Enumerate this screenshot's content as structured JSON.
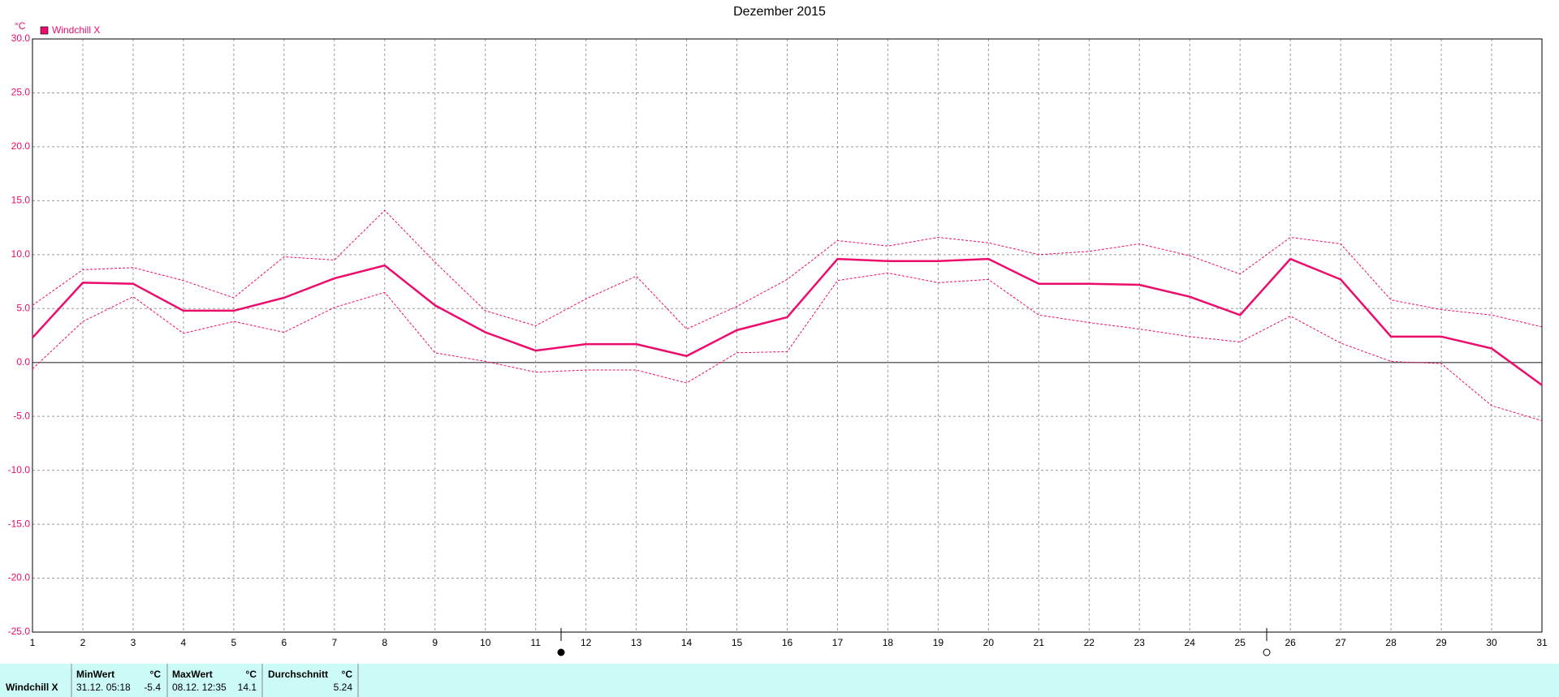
{
  "chart_data": {
    "type": "line",
    "title": "Dezember 2015",
    "y_unit": "°C",
    "x": [
      1,
      2,
      3,
      4,
      5,
      6,
      7,
      8,
      9,
      10,
      11,
      12,
      13,
      14,
      15,
      16,
      17,
      18,
      19,
      20,
      21,
      22,
      23,
      24,
      25,
      26,
      27,
      28,
      29,
      30,
      31
    ],
    "xlim": [
      1,
      31
    ],
    "xticks": [
      1,
      2,
      3,
      4,
      5,
      6,
      7,
      8,
      9,
      10,
      11,
      12,
      13,
      14,
      15,
      16,
      17,
      18,
      19,
      20,
      21,
      22,
      23,
      24,
      25,
      26,
      27,
      28,
      29,
      30,
      31
    ],
    "ylim": [
      -25,
      30
    ],
    "yticks": [
      {
        "value": 30,
        "label": "30.0"
      },
      {
        "value": 25,
        "label": "25.0"
      },
      {
        "value": 20,
        "label": "20.0"
      },
      {
        "value": 15,
        "label": "15.0"
      },
      {
        "value": 10,
        "label": "10.0"
      },
      {
        "value": 5,
        "label": "5.0"
      },
      {
        "value": 0,
        "label": "0.0"
      },
      {
        "value": -5,
        "label": "-5.0"
      },
      {
        "value": -10,
        "label": "-10.0"
      },
      {
        "value": -15,
        "label": "-15.0"
      },
      {
        "value": -20,
        "label": "-20.0"
      },
      {
        "value": -25,
        "label": "-25.0"
      }
    ],
    "grid": true,
    "series": [
      {
        "name": "Windchill X",
        "color": "#ec0c6c",
        "dashed": false,
        "values": [
          2.3,
          7.4,
          7.3,
          4.8,
          4.8,
          6.0,
          7.8,
          9.0,
          5.3,
          2.8,
          1.1,
          1.7,
          1.7,
          0.6,
          3.0,
          4.2,
          9.6,
          9.4,
          9.4,
          9.6,
          7.3,
          7.3,
          7.2,
          6.1,
          4.4,
          9.6,
          7.7,
          2.4,
          2.4,
          1.3,
          -2.1
        ]
      },
      {
        "color": "#ec0c6c",
        "dashed": true,
        "values": [
          5.3,
          8.6,
          8.8,
          7.6,
          6.0,
          9.8,
          9.5,
          14.1,
          9.3,
          4.8,
          3.4,
          5.9,
          8.0,
          3.1,
          5.2,
          7.7,
          11.3,
          10.8,
          11.6,
          11.1,
          10.0,
          10.3,
          11.0,
          9.9,
          8.2,
          11.6,
          11.0,
          5.8,
          4.9,
          4.4,
          3.3
        ]
      },
      {
        "color": "#ec0c6c",
        "dashed": true,
        "values": [
          -0.6,
          3.8,
          6.1,
          2.7,
          3.8,
          2.8,
          5.1,
          6.5,
          0.9,
          0.1,
          -0.9,
          -0.7,
          -0.7,
          -1.9,
          0.9,
          1.0,
          7.6,
          8.3,
          7.4,
          7.7,
          4.4,
          3.7,
          3.1,
          2.4,
          1.9,
          4.3,
          1.8,
          0.1,
          -0.1,
          -4.0,
          -5.4
        ]
      }
    ]
  },
  "stats": {
    "label": "Windchill X",
    "min": {
      "header": "MinWert",
      "unit": "°C",
      "time": "31.12.  05:18",
      "value": "-5.4"
    },
    "max": {
      "header": "MaxWert",
      "unit": "°C",
      "time": "08.12.  12:35",
      "value": "14.1"
    },
    "avg": {
      "header": "Durchschnitt",
      "unit": "°C",
      "value": "5.24"
    }
  }
}
